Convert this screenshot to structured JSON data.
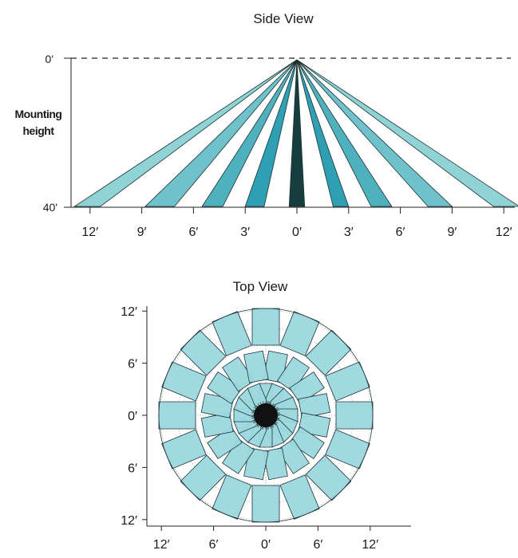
{
  "side_view": {
    "title": "Side View",
    "y_label_line1": "Mounting",
    "y_label_line2": "height",
    "y_top_label": "0'",
    "y_bottom_label": "40'",
    "x_tick_labels": [
      "12′",
      "9′",
      "6′",
      "3′",
      "0′",
      "3′",
      "6′",
      "9′",
      "12′"
    ],
    "x_tick_values": [
      -12,
      -9,
      -6,
      -3,
      0,
      3,
      6,
      9,
      12
    ],
    "beams": [
      {
        "from": -12.9,
        "to": -11.4,
        "color": "#8fd3d7"
      },
      {
        "from": -8.8,
        "to": -7.1,
        "color": "#6fc2cb"
      },
      {
        "from": -5.5,
        "to": -4.3,
        "color": "#4fb0be"
      },
      {
        "from": -3.0,
        "to": -1.9,
        "color": "#2f9fb3"
      },
      {
        "from": -0.45,
        "to": 0.45,
        "color": "#173e3e"
      },
      {
        "from": 2.1,
        "to": 3.0,
        "color": "#2f9fb3"
      },
      {
        "from": 4.3,
        "to": 5.5,
        "color": "#4fb0be"
      },
      {
        "from": 7.6,
        "to": 9.0,
        "color": "#6fc2cb"
      },
      {
        "from": 11.4,
        "to": 12.9,
        "color": "#8fd3d7"
      }
    ]
  },
  "top_view": {
    "title": "Top View",
    "y_tick_labels": [
      "12′",
      "6′",
      "0′",
      "6′",
      "12′"
    ],
    "y_tick_values": [
      12,
      6,
      0,
      -6,
      -12
    ],
    "x_tick_labels": [
      "12′",
      "6′",
      "0′",
      "6′",
      "12′"
    ],
    "x_tick_values": [
      -12,
      -6,
      0,
      6,
      12
    ],
    "fill_color": "#9bd8de",
    "dark_center_color": "#111111",
    "zone_count": 16
  }
}
